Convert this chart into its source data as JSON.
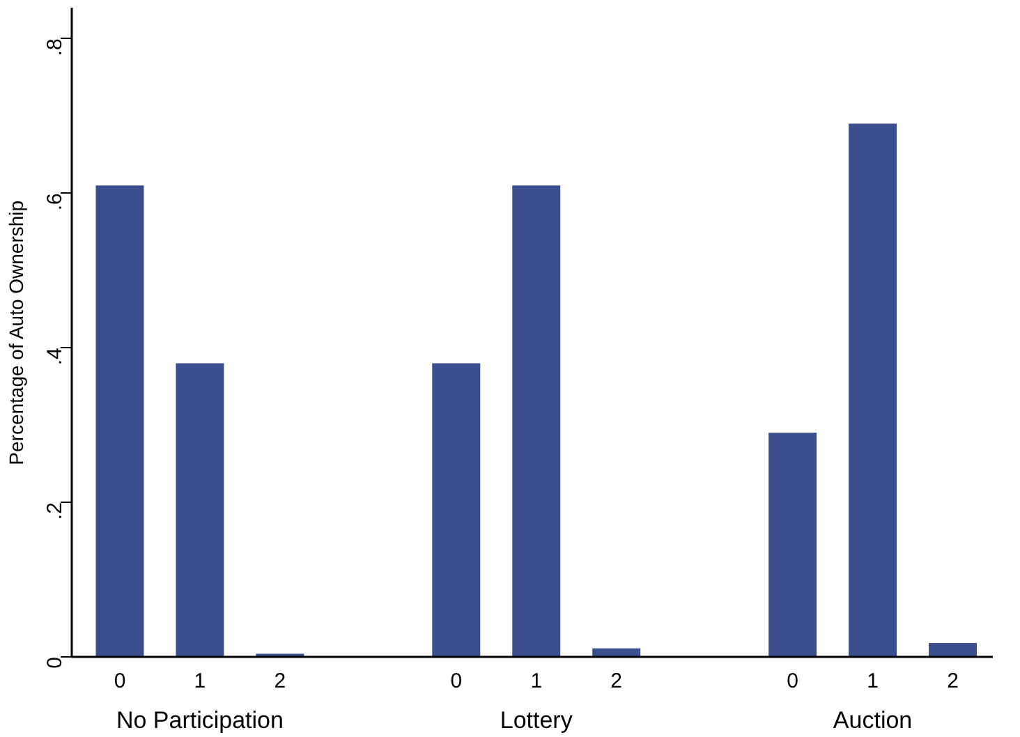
{
  "chart_data": {
    "type": "bar",
    "ylabel": "Percentage of Auto Ownership",
    "categories": [
      "No Participation",
      "Lottery",
      "Auction"
    ],
    "series": [
      {
        "name": "0",
        "color": "#3b4f8e",
        "values": [
          0.61,
          0.38,
          0.29
        ]
      },
      {
        "name": "1",
        "color": "#3b4f8e",
        "values": [
          0.38,
          0.61,
          0.69
        ]
      },
      {
        "name": "2",
        "color": "#3b4f8e",
        "values": [
          0.004,
          0.011,
          0.018
        ]
      }
    ],
    "ylim": [
      0,
      0.84
    ],
    "yticks": [
      0,
      {
        "value": 0.2,
        "label": ".2"
      },
      {
        "value": 0.4,
        "label": ".4"
      },
      {
        "value": 0.6,
        "label": ".6"
      },
      {
        "value": 0.8,
        "label": ".8"
      }
    ],
    "grid": false
  }
}
